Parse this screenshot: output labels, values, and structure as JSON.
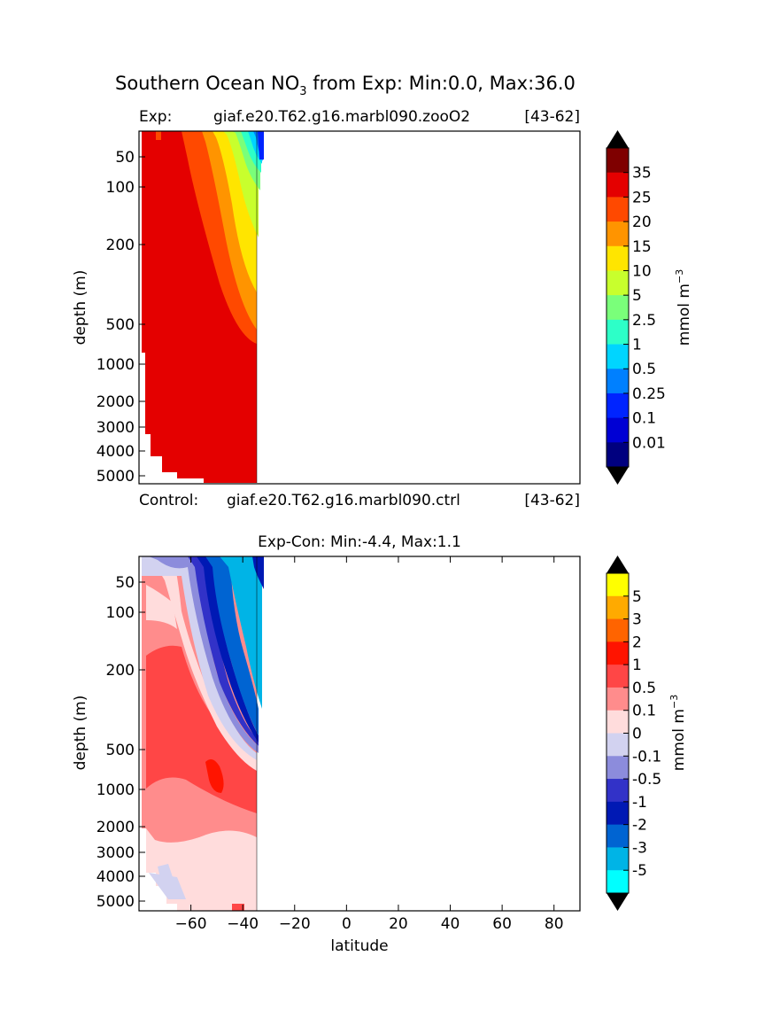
{
  "figure": {
    "title_main": "Southern Ocean NO",
    "title_sub": "3",
    "title_rest": " from Exp: Min:0.0, Max:36.0"
  },
  "chart_data": [
    {
      "type": "heatmap",
      "panel": "top",
      "header_left": "Exp:",
      "header_center": "giaf.e20.T62.g16.marbl090.zooO2",
      "header_right": "[43-62]",
      "footer_left": "Control:",
      "footer_center": "giaf.e20.T62.g16.marbl090.ctrl",
      "footer_right": "[43-62]",
      "ylabel": "depth (m)",
      "xlabel": "",
      "xlim": [
        -80,
        90
      ],
      "y_ticks": [
        "50",
        "100",
        "200",
        "500",
        "1000",
        "2000",
        "3000",
        "4000",
        "5000"
      ],
      "colorbar_label": "mmol m",
      "colorbar_label_exp": "−3",
      "colorbar_levels": [
        "0.01",
        "0.1",
        "0.25",
        "0.5",
        "1",
        "2.5",
        "5",
        "10",
        "15",
        "20",
        "25",
        "35"
      ],
      "colorbar_colors": [
        "#00007f",
        "#0000d4",
        "#0024ff",
        "#0080ff",
        "#00d5ff",
        "#2dffc8",
        "#7aff7a",
        "#c8ff2d",
        "#ffe500",
        "#ff9400",
        "#ff4900",
        "#e40000",
        "#7f0000"
      ],
      "under_color": "#000000",
      "over_color": "#000000",
      "data_extent_lat": [
        -78,
        -33
      ],
      "value_range": [
        0.0,
        36.0
      ]
    },
    {
      "type": "heatmap",
      "panel": "bottom",
      "title": "Exp-Con: Min:-4.4, Max:1.1",
      "ylabel": "depth (m)",
      "xlabel": "latitude",
      "xlim": [
        -80,
        90
      ],
      "x_ticks": [
        "−60",
        "−40",
        "−20",
        "0",
        "20",
        "40",
        "60",
        "80"
      ],
      "x_tick_values": [
        -60,
        -40,
        -20,
        0,
        20,
        40,
        60,
        80
      ],
      "y_ticks": [
        "50",
        "100",
        "200",
        "500",
        "1000",
        "2000",
        "3000",
        "4000",
        "5000"
      ],
      "colorbar_label": "mmol m",
      "colorbar_label_exp": "−3",
      "colorbar_levels": [
        "-5",
        "-3",
        "-2",
        "-1",
        "-0.5",
        "-0.1",
        "0",
        "0.1",
        "0.5",
        "1",
        "2",
        "3",
        "5"
      ],
      "colorbar_colors": [
        "#00ffff",
        "#00b4e6",
        "#0064d2",
        "#0019b4",
        "#3232c8",
        "#8c8cdc",
        "#d2d2f0",
        "#ffdcdc",
        "#ff8c8c",
        "#ff4646",
        "#ff1400",
        "#ff6400",
        "#ffaa00",
        "#ffff00"
      ],
      "under_color": "#000000",
      "over_color": "#000000",
      "data_extent_lat": [
        -78,
        -33
      ],
      "value_range": [
        -4.4,
        1.1
      ]
    }
  ]
}
